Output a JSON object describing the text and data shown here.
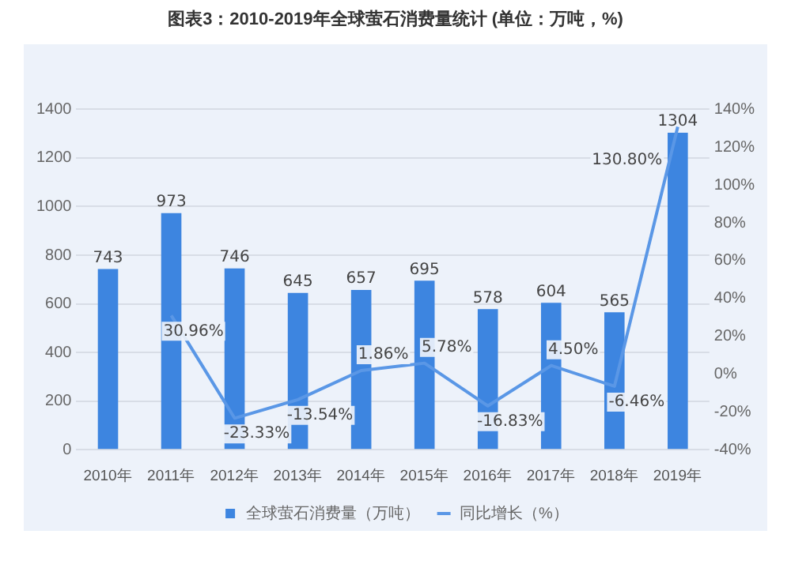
{
  "chart_data": {
    "type": "bar",
    "title": "图表3：2010-2019年全球萤石消费量统计 (单位：万吨，%)",
    "categories": [
      "2010年",
      "2011年",
      "2012年",
      "2013年",
      "2014年",
      "2015年",
      "2016年",
      "2017年",
      "2018年",
      "2019年"
    ],
    "series": [
      {
        "name": "全球萤石消费量（万吨）",
        "color": "#3d85e0",
        "values": [
          743,
          973,
          746,
          645,
          657,
          695,
          578,
          604,
          565,
          1304
        ],
        "value_labels": [
          "743",
          "973",
          "746",
          "645",
          "657",
          "695",
          "578",
          "604",
          "565",
          "1304"
        ]
      },
      {
        "name": "同比增长（%）",
        "type": "line",
        "axis": "y2",
        "color": "#5a97e6",
        "values": [
          null,
          30.96,
          -23.33,
          -13.54,
          1.86,
          5.78,
          -16.83,
          4.5,
          -6.46,
          130.8
        ],
        "value_labels": [
          null,
          "30.96%",
          "-23.33%",
          "-13.54%",
          "1.86%",
          "5.78%",
          "-16.83%",
          "4.50%",
          "-6.46%",
          "130.80%"
        ]
      }
    ],
    "ylim": [
      0,
      1400
    ],
    "yticks": [
      0,
      200,
      400,
      600,
      800,
      1000,
      1200,
      1400
    ],
    "y2lim": [
      -40,
      140
    ],
    "y2ticks": [
      {
        "value": -40,
        "label": "-40%"
      },
      {
        "value": -20,
        "label": "-20%"
      },
      {
        "value": 0,
        "label": "0%"
      },
      {
        "value": 20,
        "label": "20%"
      },
      {
        "value": 40,
        "label": "40%"
      },
      {
        "value": 60,
        "label": "60%"
      },
      {
        "value": 80,
        "label": "80%"
      },
      {
        "value": 100,
        "label": "100%"
      },
      {
        "value": 120,
        "label": "120%"
      },
      {
        "value": 140,
        "label": "140%"
      }
    ],
    "grid": "y",
    "legend": "bottom",
    "marker": "none",
    "line_style": "solid"
  }
}
